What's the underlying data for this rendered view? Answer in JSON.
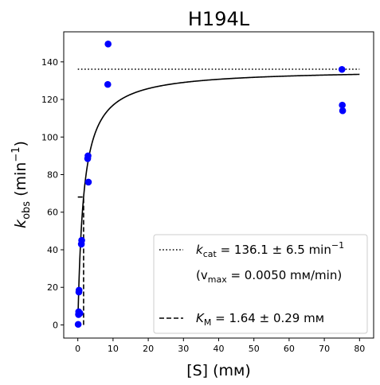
{
  "chart_data": {
    "type": "scatter",
    "title": "H194L",
    "xlabel": "[S] (mм)",
    "ylabel": {
      "base": "k",
      "sub": "obs",
      "unit_open": " (min",
      "sup": "−1",
      "unit_close": ")"
    },
    "xlim": [
      -4,
      84
    ],
    "ylim": [
      -7,
      156
    ],
    "xticks": [
      0,
      10,
      20,
      30,
      40,
      50,
      60,
      70,
      80
    ],
    "yticks": [
      0,
      20,
      40,
      60,
      80,
      100,
      120,
      140
    ],
    "grid": false,
    "legend_position": "lower-right",
    "colors": {
      "points": "#0000ff",
      "fit": "#000000",
      "reference_lines": "#000000"
    },
    "points": [
      {
        "x": 0.1,
        "y": 0.3
      },
      {
        "x": 0.2,
        "y": 5.5
      },
      {
        "x": 0.25,
        "y": 7
      },
      {
        "x": 0.3,
        "y": 17.5
      },
      {
        "x": 0.35,
        "y": 18.5
      },
      {
        "x": 0.6,
        "y": 6.2
      },
      {
        "x": 1.0,
        "y": 43
      },
      {
        "x": 1.1,
        "y": 45
      },
      {
        "x": 2.8,
        "y": 88.5
      },
      {
        "x": 2.9,
        "y": 90
      },
      {
        "x": 3.0,
        "y": 76
      },
      {
        "x": 8.5,
        "y": 128
      },
      {
        "x": 8.6,
        "y": 149.5
      },
      {
        "x": 75,
        "y": 136
      },
      {
        "x": 75.1,
        "y": 117
      },
      {
        "x": 75.2,
        "y": 114
      }
    ],
    "fit": {
      "model": "michaelis-menten",
      "kcat": 136.1,
      "km": 1.64,
      "x_range": [
        0.05,
        80
      ]
    },
    "kcat_line": {
      "y": 136.1,
      "x_range": [
        0,
        80
      ],
      "style": "dotted"
    },
    "km_line": {
      "x": 1.64,
      "y": 68.05,
      "style": "dashed"
    },
    "legend": [
      {
        "style": "dotted",
        "label": {
          "pre": "k",
          "sub": "cat",
          "mid": " = 136.1 ± 6.5 min",
          "sup": "−1"
        }
      },
      {
        "style": "none",
        "label": {
          "pre": "(v",
          "sub": "max",
          "mid": " = 0.0050 mм/min)",
          "sup": ""
        }
      },
      {
        "style": "none",
        "label": {
          "pre": "",
          "sub": "",
          "mid": "",
          "sup": ""
        }
      },
      {
        "style": "dashed",
        "label": {
          "pre": "K",
          "sub": "M",
          "mid": " = 1.64 ± 0.29 mм",
          "sup": ""
        }
      }
    ]
  }
}
